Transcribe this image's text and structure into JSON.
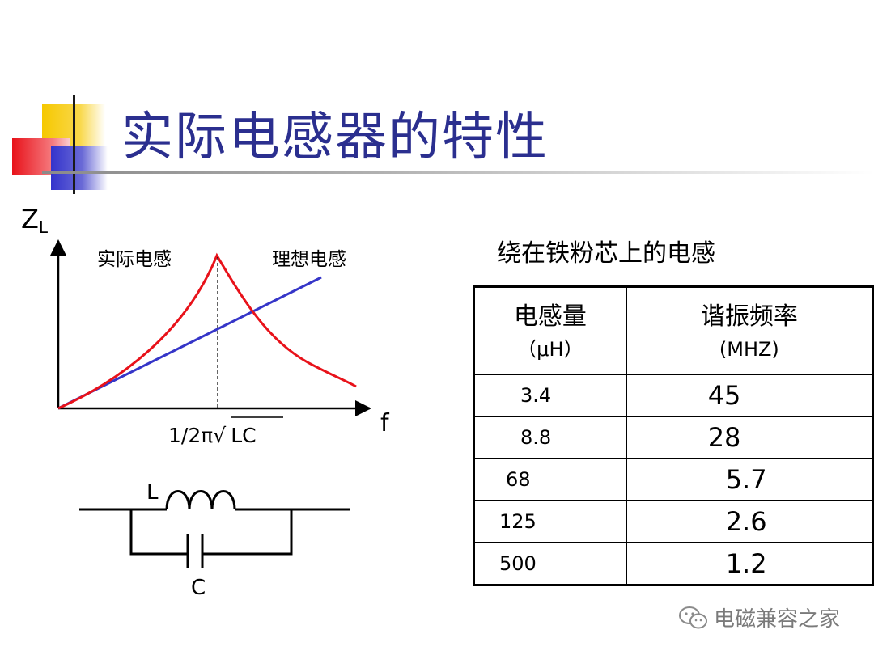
{
  "slide": {
    "title": "实际电感器的特性"
  },
  "chart": {
    "y_axis_label": "Z",
    "y_axis_sub": "L",
    "x_axis_label": "f",
    "series_real_label": "实际电感",
    "series_ideal_label": "理想电感",
    "resonance_label_prefix": "1/2π√",
    "resonance_label_radicand": "LC",
    "colors": {
      "real": "#e8121a",
      "ideal": "#3535c8"
    }
  },
  "circuit": {
    "inductor_label": "L",
    "capacitor_label": "C"
  },
  "table": {
    "caption": "绕在铁粉芯上的电感",
    "header": {
      "col1": "电感量",
      "col1_unit": "（μH）",
      "col2": "谐振频率",
      "col2_unit": "(MHZ)"
    },
    "rows": [
      {
        "inductance": "3.4",
        "frequency": "45"
      },
      {
        "inductance": "8.8",
        "frequency": "28"
      },
      {
        "inductance": "68",
        "frequency": "5.7"
      },
      {
        "inductance": "125",
        "frequency": "2.6"
      },
      {
        "inductance": "500",
        "frequency": "1.2"
      }
    ]
  },
  "watermark": {
    "text": "电磁兼容之家",
    "icon": "wechat-icon"
  }
}
